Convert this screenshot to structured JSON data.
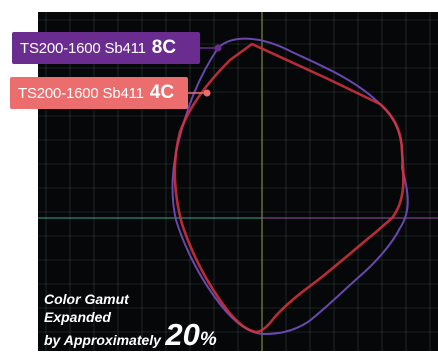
{
  "chart_data": {
    "type": "line",
    "title": "",
    "xlabel": "",
    "ylabel": "",
    "grid": true,
    "colors": {
      "background": "#ffffff",
      "plot_background": "#050708",
      "grid": "#5a6460",
      "axis_vertical": "#8fa05a",
      "axis_horizontal_left": "#3aa38c",
      "axis_horizontal_right": "#9b4fa8"
    },
    "series": [
      {
        "name": "TS200-1600 Sb411 8C",
        "label_base": "TS200-1600 Sb411",
        "label_variant": "8C",
        "color": "#6e4bb8",
        "label_color": "#6b2c8f"
      },
      {
        "name": "TS200-1600 Sb411 4C",
        "label_base": "TS200-1600 Sb411",
        "label_variant": "4C",
        "color": "#d9323e",
        "label_color": "#ec6d6d"
      }
    ],
    "annotation": {
      "line1": "Color Gamut",
      "line2": "Expanded",
      "line3": "by Approximately",
      "percent_value": "20",
      "percent_sign": "%"
    }
  }
}
